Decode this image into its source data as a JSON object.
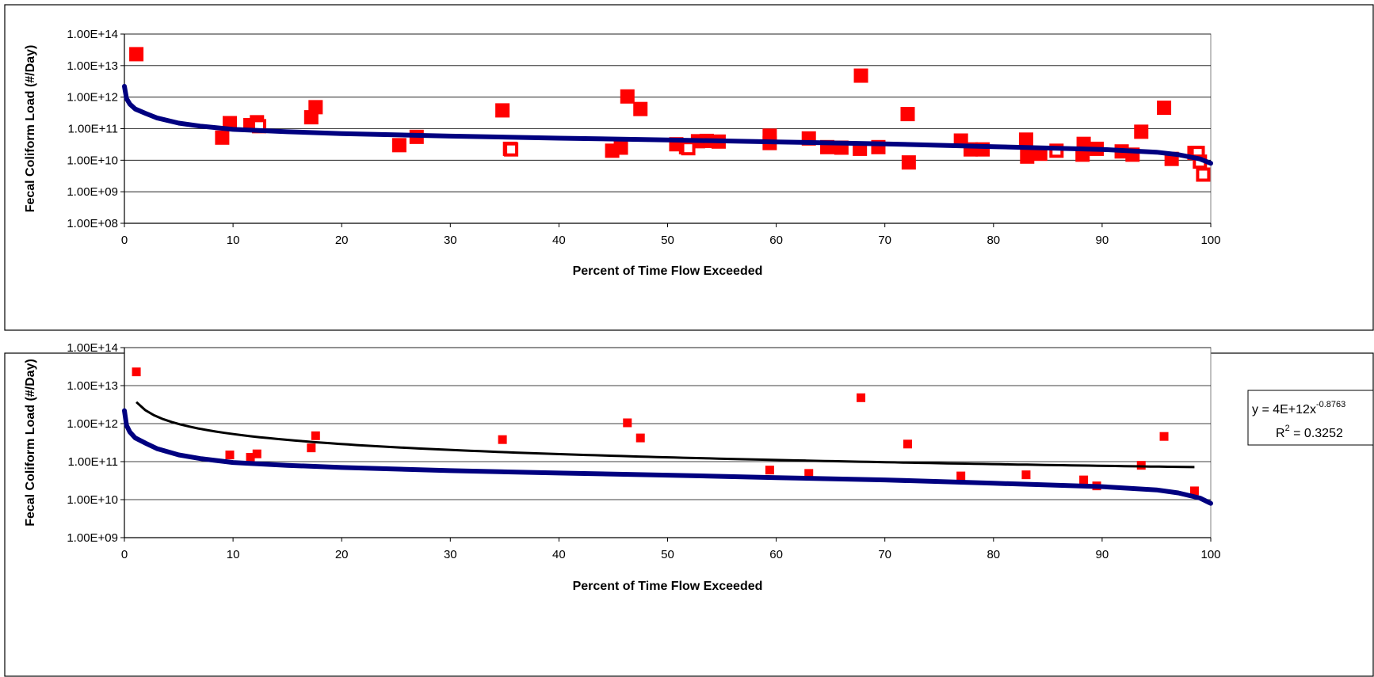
{
  "chart_data": [
    {
      "type": "scatter",
      "title": "",
      "xlabel": "Percent of Time Flow Exceeded",
      "ylabel": "Fecal Coliform Load (#/Day)",
      "xlim": [
        0,
        100
      ],
      "ylim": [
        100000000,
        100000000000000
      ],
      "y_scale": "log",
      "x_ticks": [
        0,
        10,
        20,
        30,
        40,
        50,
        60,
        70,
        80,
        90,
        100
      ],
      "x_tick_labels": [
        "0",
        "10",
        "20",
        "30",
        "40",
        "50",
        "60",
        "70",
        "80",
        "90",
        "100"
      ],
      "y_ticks": [
        100000000,
        1000000000,
        10000000000,
        100000000000,
        1000000000000,
        10000000000000,
        100000000000000
      ],
      "y_tick_labels": [
        "1.00E+08",
        "1.00E+09",
        "1.00E+10",
        "1.00E+11",
        "1.00E+12",
        "1.00E+13",
        "1.00E+14"
      ],
      "grid": true,
      "legend": "none",
      "colors": {
        "curve": "#000080",
        "filled": "#ff0000",
        "hollow": "#ff0000"
      },
      "series": [
        {
          "role": "curve",
          "x": [
            0,
            0.2,
            0.5,
            1,
            2,
            3,
            5,
            7,
            10,
            15,
            20,
            30,
            40,
            50,
            60,
            70,
            80,
            90,
            95,
            97,
            99,
            100
          ],
          "y": [
            2200000000000,
            900000000000,
            600000000000,
            420000000000,
            300000000000,
            220000000000,
            150000000000,
            120000000000,
            95000000000,
            80000000000,
            70000000000,
            58000000000,
            50000000000,
            44000000000,
            38000000000,
            33000000000,
            27000000000,
            22000000000,
            18000000000,
            15000000000,
            11000000000,
            8000000000
          ]
        },
        {
          "role": "filled",
          "x": [
            1.1,
            9.7,
            11.6,
            12.2,
            17.2,
            17.6,
            34.8,
            46.3,
            47.5,
            59.4,
            63.0,
            67.8,
            72.1,
            77.0,
            83.0,
            88.3,
            89.5,
            93.6,
            95.7,
            98.5,
            9.0,
            25.3,
            26.9,
            35.5,
            44.9,
            45.7,
            50.8,
            51.7,
            52.8,
            53.6,
            54.7,
            59.4,
            64.7,
            66.0,
            67.7,
            69.4,
            72.2,
            77.9,
            79.0,
            83.1,
            84.3,
            88.2,
            91.8,
            92.8,
            96.4
          ],
          "y": [
            23000000000000,
            150000000000,
            130000000000,
            160000000000,
            230000000000,
            480000000000,
            380000000000,
            1050000000000,
            420000000000,
            60000000000,
            49000000000,
            4800000000000,
            290000000000,
            42000000000,
            45000000000,
            33000000000,
            23000000000,
            80000000000,
            460000000000,
            17000000000,
            52000000000,
            30000000000,
            55000000000,
            23000000000,
            20000000000,
            25000000000,
            32000000000,
            26000000000,
            40000000000,
            41000000000,
            39000000000,
            35000000000,
            26000000000,
            25000000000,
            23000000000,
            26000000000,
            8500000000,
            22000000000,
            22000000000,
            13000000000,
            16000000000,
            15000000000,
            19000000000,
            15000000000,
            11000000000
          ]
        },
        {
          "role": "hollow",
          "x": [
            12.4,
            35.6,
            51.9,
            85.8,
            98.8,
            99.0,
            99.3
          ],
          "y": [
            120000000000,
            22000000000,
            24000000000,
            20000000000,
            17000000000,
            9000000000,
            3500000000
          ]
        }
      ]
    },
    {
      "type": "scatter",
      "title": "",
      "xlabel": "Percent of Time Flow Exceeded",
      "ylabel": "Fecal Coliform Load (#/Day)",
      "xlim": [
        0,
        100
      ],
      "ylim": [
        1000000000,
        100000000000000
      ],
      "y_scale": "log",
      "x_ticks": [
        0,
        10,
        20,
        30,
        40,
        50,
        60,
        70,
        80,
        90,
        100
      ],
      "x_tick_labels": [
        "0",
        "10",
        "20",
        "30",
        "40",
        "50",
        "60",
        "70",
        "80",
        "90",
        "100"
      ],
      "y_ticks": [
        1000000000,
        10000000000,
        100000000000,
        1000000000000,
        10000000000000,
        100000000000000
      ],
      "y_tick_labels": [
        "1.00E+09",
        "1.00E+10",
        "1.00E+11",
        "1.00E+12",
        "1.00E+13",
        "1.00E+14"
      ],
      "grid": true,
      "legend": "none",
      "colors": {
        "curve": "#000080",
        "filled": "#ff0000",
        "trend": "#000000"
      },
      "trendline": {
        "equation_prefix": "y = 4E+12x",
        "equation_exponent": "-0.8763",
        "r2_prefix": "R",
        "r2_sup": "2",
        "r2_suffix": " = 0.3252",
        "coefficient": 4000000000000,
        "exponent": -0.8763,
        "x_range": [
          1.1,
          98.5
        ]
      },
      "series": [
        {
          "role": "curve",
          "x": [
            0,
            0.2,
            0.5,
            1,
            2,
            3,
            5,
            7,
            10,
            15,
            20,
            30,
            40,
            50,
            60,
            70,
            80,
            90,
            95,
            97,
            99,
            100
          ],
          "y": [
            2200000000000,
            900000000000,
            600000000000,
            420000000000,
            300000000000,
            220000000000,
            150000000000,
            120000000000,
            95000000000,
            80000000000,
            70000000000,
            58000000000,
            50000000000,
            44000000000,
            38000000000,
            33000000000,
            27000000000,
            22000000000,
            18000000000,
            15000000000,
            11000000000,
            8000000000
          ]
        },
        {
          "role": "filled",
          "x": [
            1.1,
            9.7,
            11.6,
            12.2,
            17.2,
            17.6,
            34.8,
            46.3,
            47.5,
            59.4,
            63.0,
            67.8,
            72.1,
            77.0,
            83.0,
            88.3,
            89.5,
            93.6,
            95.7,
            98.5
          ],
          "y": [
            23000000000000,
            150000000000,
            130000000000,
            160000000000,
            230000000000,
            480000000000,
            380000000000,
            1050000000000,
            420000000000,
            60000000000,
            49000000000,
            4800000000000,
            290000000000,
            42000000000,
            45000000000,
            33000000000,
            23000000000,
            80000000000,
            460000000000,
            17000000000
          ]
        }
      ]
    }
  ]
}
